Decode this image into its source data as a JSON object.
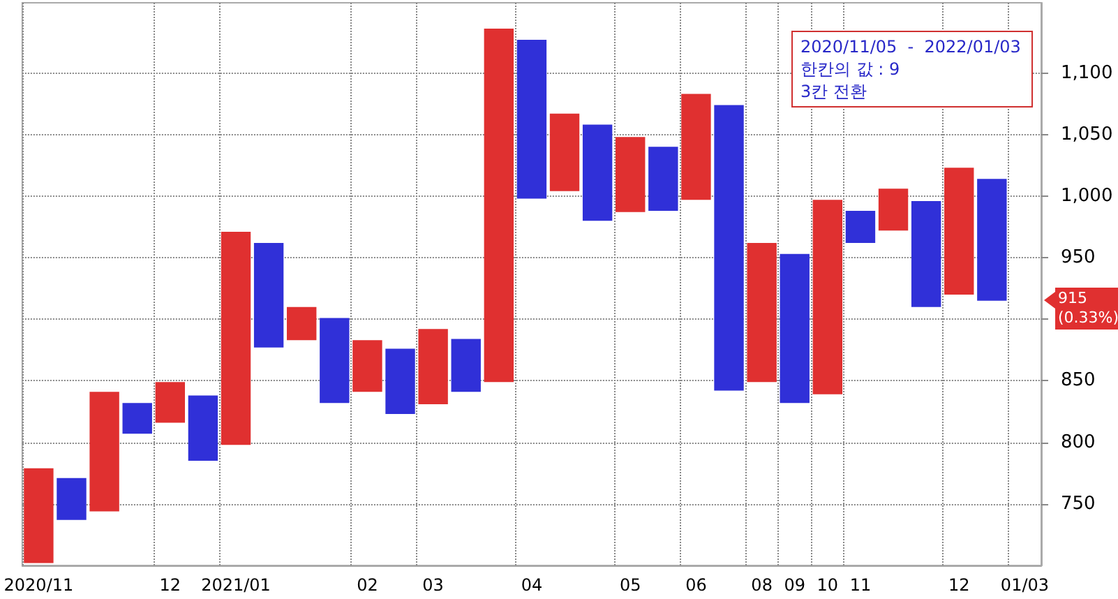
{
  "chart_data": {
    "type": "bar",
    "categories": [
      "2020/11",
      null,
      null,
      null,
      "12",
      null,
      "2021/01",
      null,
      null,
      null,
      "02",
      null,
      "03",
      null,
      null,
      "04",
      null,
      null,
      "05",
      null,
      "06",
      null,
      "08",
      "09",
      "10",
      "11",
      null,
      null,
      "12",
      null,
      "01/03"
    ],
    "base": [
      702,
      737,
      744,
      807,
      816,
      785,
      798,
      877,
      883,
      832,
      841,
      823,
      831,
      841,
      849,
      998,
      1004,
      980,
      987,
      988,
      997,
      842,
      849,
      832,
      839,
      962,
      972,
      910,
      920,
      915,
      null
    ],
    "values": [
      77,
      34,
      97,
      25,
      33,
      53,
      173,
      85,
      27,
      69,
      42,
      53,
      61,
      43,
      287,
      129,
      63,
      78,
      61,
      52,
      86,
      232,
      113,
      121,
      158,
      26,
      34,
      86,
      103,
      99,
      null
    ],
    "colors": [
      "#e03030",
      "#3030d8",
      "#e03030",
      "#3030d8",
      "#e03030",
      "#3030d8",
      "#e03030",
      "#3030d8",
      "#e03030",
      "#3030d8",
      "#e03030",
      "#3030d8",
      "#e03030",
      "#3030d8",
      "#e03030",
      "#3030d8",
      "#e03030",
      "#3030d8",
      "#e03030",
      "#3030d8",
      "#e03030",
      "#3030d8",
      "#e03030",
      "#3030d8",
      "#e03030",
      "#3030d8",
      "#e03030",
      "#3030d8",
      "#e03030",
      "#3030d8",
      null
    ],
    "ylim": [
      700,
      1157
    ],
    "yticks": [
      750,
      800,
      850,
      {
        "value": 900,
        "label": null
      },
      950,
      {
        "value": 1000,
        "label": "1,000"
      },
      {
        "value": 1050,
        "label": "1,050"
      },
      {
        "value": 1100,
        "label": "1,100"
      }
    ],
    "grid": true,
    "annotations": [
      "2020/11/05  -  2022/01/03",
      "한칸의 값 : 9",
      "3칸 전환",
      "915\n(0.33%)"
    ]
  }
}
